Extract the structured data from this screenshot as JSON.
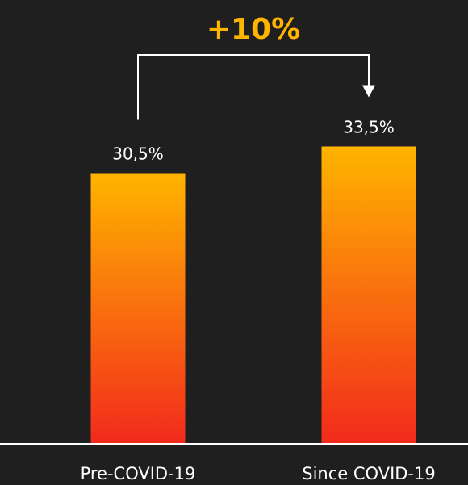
{
  "chart_data": {
    "type": "bar",
    "categories": [
      "Pre-COVID-19",
      "Since COVID-19"
    ],
    "values": [
      30.5,
      33.5
    ],
    "value_labels": [
      "30,5%",
      "33,5%"
    ],
    "ylim": [
      0,
      34
    ],
    "grid": false,
    "legend": "none",
    "annotation": {
      "text": "+10%",
      "from": "Pre-COVID-19",
      "to": "Since COVID-19"
    }
  },
  "colors": {
    "background": "#1f1f1f",
    "bar_top": "#ffb400",
    "bar_bottom": "#f22a1c",
    "annotation_text": "#ffb400",
    "connector": "#ffffff",
    "baseline": "#ffffff",
    "label_text": "#ffffff"
  }
}
